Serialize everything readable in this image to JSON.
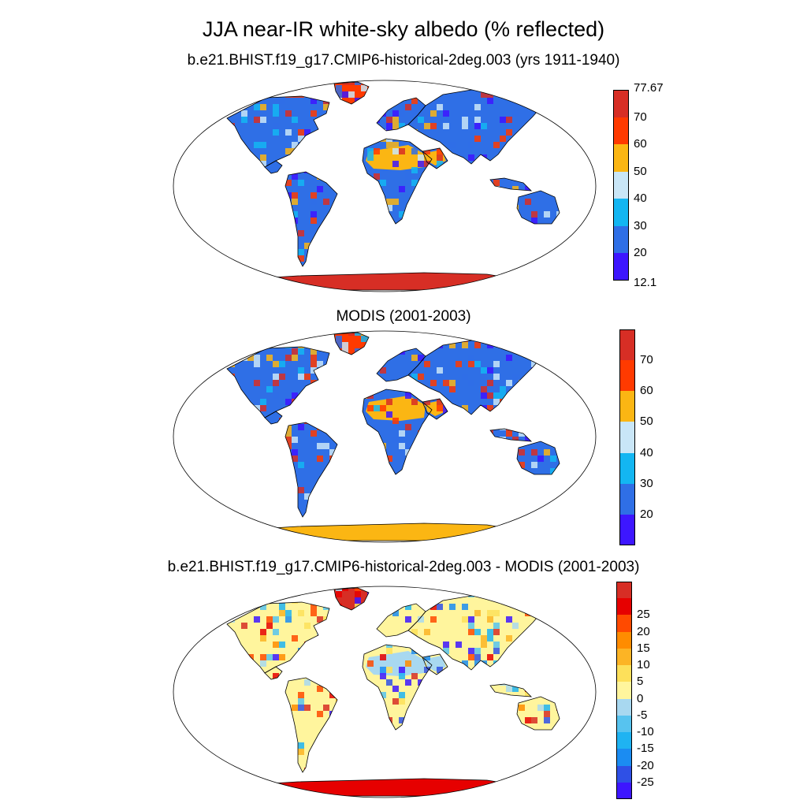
{
  "title": "JJA near-IR white-sky albedo (% reflected)",
  "panels": [
    {
      "id": "model",
      "subtitle": "b.e21.BHIST.f19_g17.CMIP6-historical-2deg.003 (yrs 1911-1940)",
      "colorbar": {
        "colors": [
          "#3d16ff",
          "#2f6fe6",
          "#13b6f2",
          "#c9e6f7",
          "#fbb613",
          "#ff3a00",
          "#d72e25"
        ],
        "labels": [
          "12.1",
          "20",
          "30",
          "40",
          "50",
          "60",
          "70",
          "77.67"
        ],
        "label_style": "edges-with-extremes"
      },
      "fill": {
        "land": "#2f6fe6",
        "desert": "#fbb613",
        "ice": "#d72e25",
        "greenland": "#ff3a00"
      }
    },
    {
      "id": "obs",
      "subtitle": "MODIS (2001-2003)",
      "colorbar": {
        "colors": [
          "#3d16ff",
          "#2f6fe6",
          "#13b6f2",
          "#c9e6f7",
          "#fbb613",
          "#ff3a00",
          "#d72e25"
        ],
        "labels": [
          "20",
          "30",
          "40",
          "50",
          "60",
          "70"
        ],
        "label_style": "interior"
      },
      "fill": {
        "land": "#2f6fe6",
        "desert": "#fbb613",
        "ice": "#fbb613",
        "greenland": "#ff3a00"
      }
    },
    {
      "id": "diff",
      "subtitle": "b.e21.BHIST.f19_g17.CMIP6-historical-2deg.003 - MODIS (2001-2003)",
      "colorbar": {
        "colors": [
          "#3d16ff",
          "#2f50e6",
          "#1b8cf2",
          "#1fb3f2",
          "#57c3ef",
          "#a8d8f0",
          "#fff59d",
          "#fde05a",
          "#fcb425",
          "#ff8c00",
          "#ff4a00",
          "#e60000",
          "#d72e25"
        ],
        "labels": [
          "-25",
          "-20",
          "-15",
          "-10",
          "-5",
          "0",
          "5",
          "10",
          "15",
          "20",
          "25"
        ],
        "label_style": "interior"
      },
      "fill": {
        "land": "#fff59d",
        "desert": "#a8d8f0",
        "ice": "#e60000",
        "greenland": "#d72e25"
      }
    }
  ]
}
